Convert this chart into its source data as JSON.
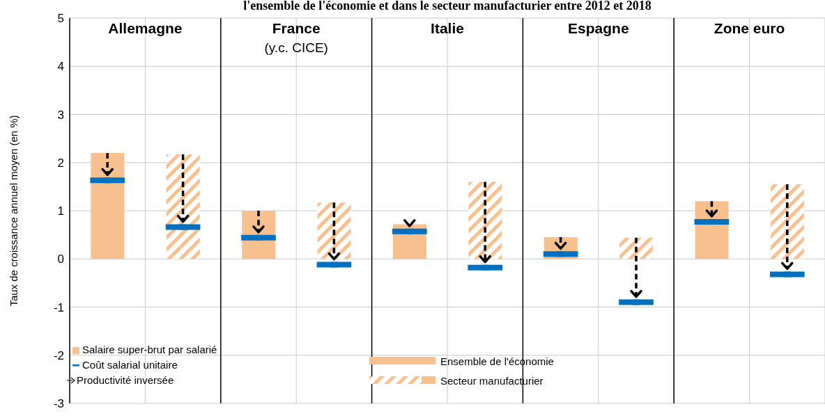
{
  "chart_data": {
    "type": "bar",
    "title": "l'ensemble de l'économie et dans le secteur manufacturier entre 2012 et 2018",
    "ylabel": "Taux de croissance annuel moyen (en %)",
    "categories": [
      null,
      null,
      null,
      null,
      null,
      null,
      null,
      null,
      null,
      null
    ],
    "annotations": [
      "Allemagne",
      "France\n(y.c. CICE)",
      "Italie",
      "Espagne",
      "Zone euro",
      "Salaire super-brut par salarié",
      "Productivité inversée"
    ],
    "series": [
      {
        "name": "Ensemble de l'économie",
        "color": "#f8c08f",
        "values": [
          2.2,
          null,
          1.0,
          null,
          0.72,
          null,
          0.45,
          null,
          1.2,
          null
        ]
      },
      {
        "name": "Secteur manufacturier",
        "color": "#f8c08f",
        "values": [
          null,
          2.17,
          null,
          1.17,
          null,
          1.6,
          null,
          0.44,
          null,
          1.55
        ]
      },
      {
        "name": "Coût salarial unitaire",
        "type": "scatter",
        "color": "#0070c0",
        "values": [
          1.63,
          0.66,
          0.44,
          -0.12,
          0.57,
          -0.18,
          0.1,
          -0.9,
          0.77,
          -0.32
        ]
      }
    ],
    "ylim": [
      -3,
      5
    ],
    "yticks": [
      -3,
      -2,
      -1,
      0,
      1,
      2,
      3,
      4,
      5
    ],
    "grid": true,
    "legend": "bottom"
  }
}
